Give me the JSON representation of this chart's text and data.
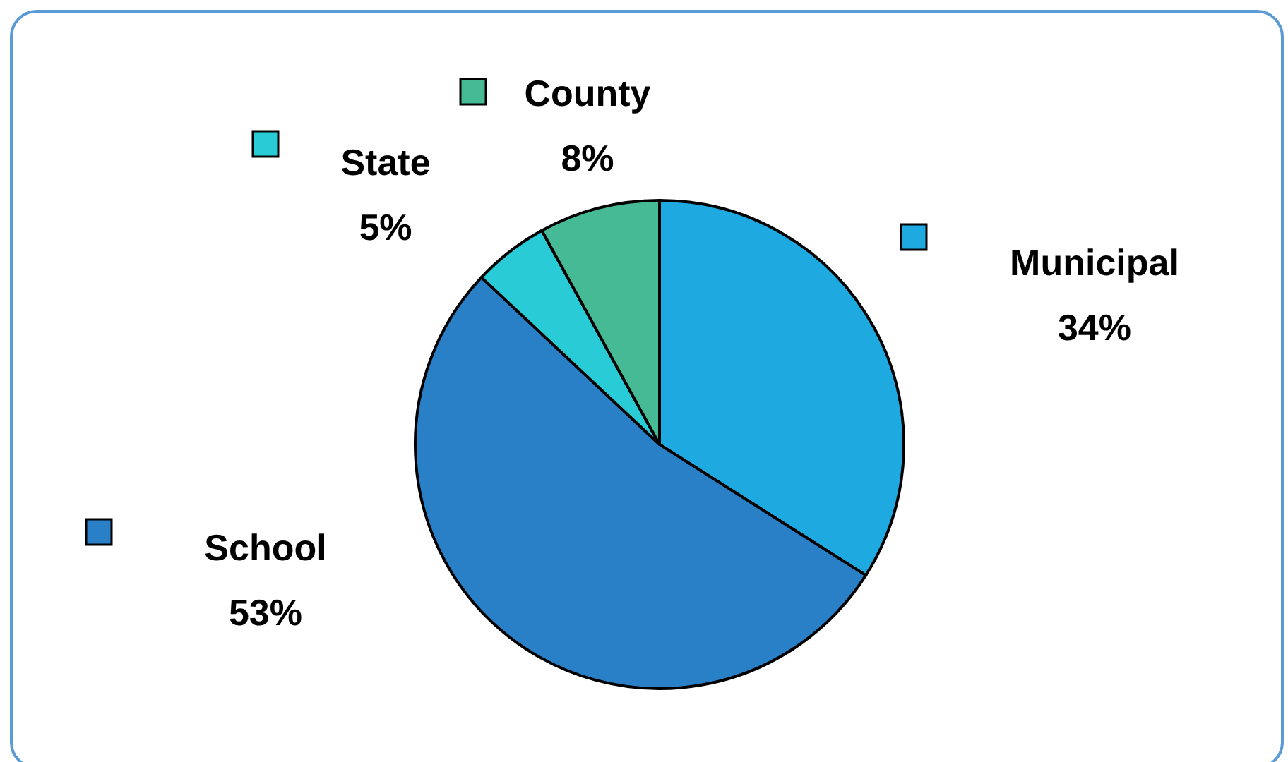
{
  "chart_data": {
    "type": "pie",
    "categories": [
      "Municipal",
      "School",
      "State",
      "County"
    ],
    "values": [
      34,
      53,
      5,
      8
    ],
    "colors": [
      "#1fa9e1",
      "#2a80c6",
      "#29ccd6",
      "#46b995"
    ],
    "value_labels": [
      "34%",
      "53%",
      "5%",
      "8%"
    ],
    "legend": "top"
  }
}
